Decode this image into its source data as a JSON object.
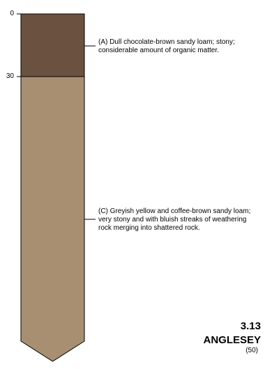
{
  "depths": {
    "top": "0",
    "boundary": "30"
  },
  "horizons": [
    {
      "id": "A",
      "color": "#6b5240",
      "description": "(A) Dull chocolate-brown sandy loam; stony;\nconsiderable amount of organic matter."
    },
    {
      "id": "C",
      "color": "#a88f72",
      "description": "(C) Greyish yellow and coffee-brown sandy loam;\nvery stony and with bluish streaks of weathering\nrock merging into shattered rock."
    }
  ],
  "profile": {
    "number": "3.13",
    "name": "ANGLESEY",
    "code": "(50)"
  }
}
